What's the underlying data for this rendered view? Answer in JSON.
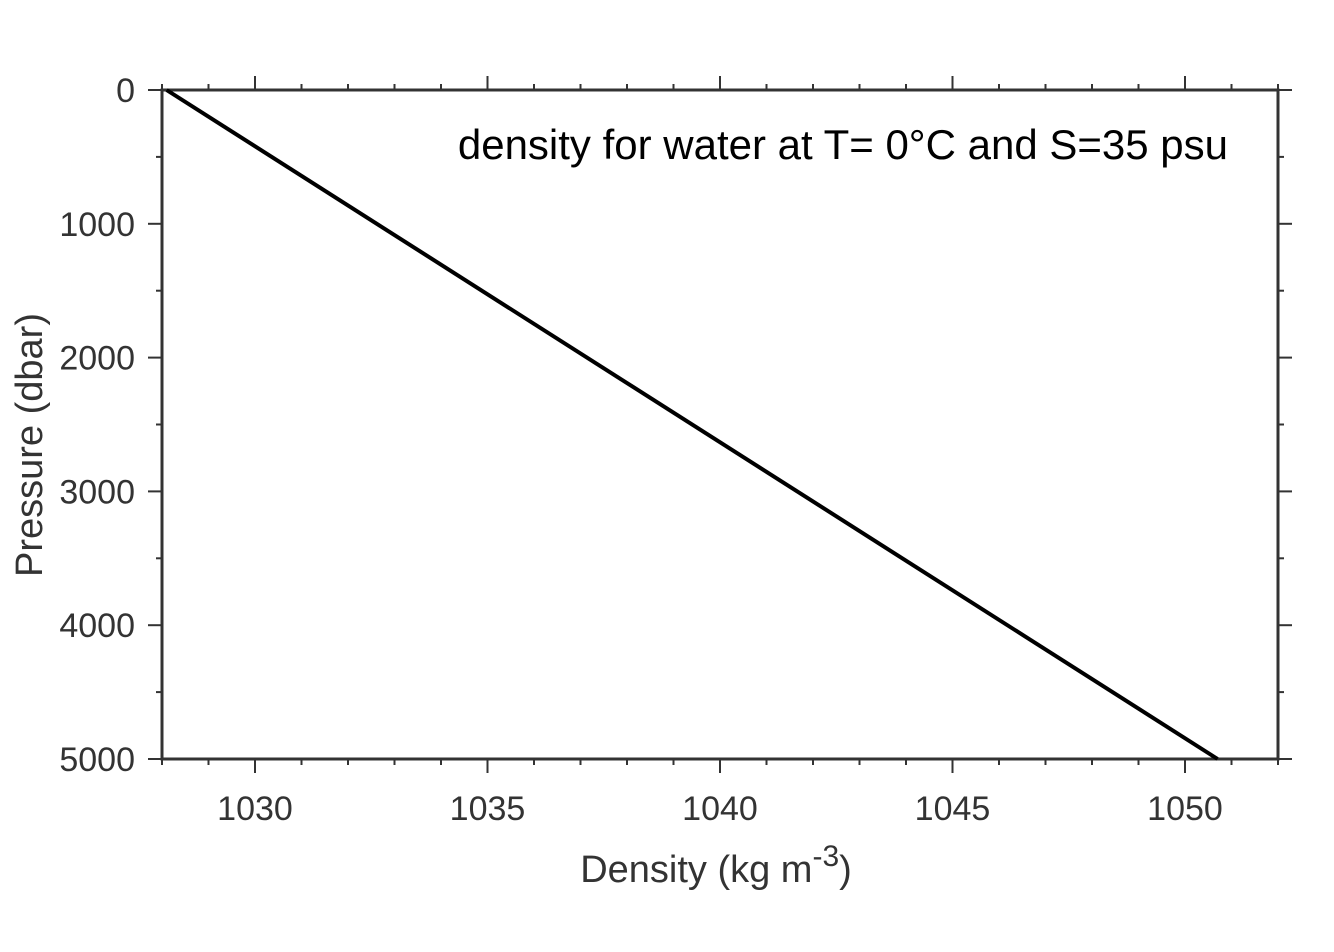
{
  "chart_data": {
    "type": "line",
    "title": "",
    "annotation": "density for water at T= 0°C and S=35 psu",
    "xlabel": {
      "base": "Density (kg m",
      "superscript": "-3",
      "suffix": ")"
    },
    "ylabel": "Pressure (dbar)",
    "xlim": [
      1028,
      1052
    ],
    "ylim": [
      0,
      5000
    ],
    "y_inverted": true,
    "x_major_ticks": [
      1030,
      1035,
      1040,
      1045,
      1050
    ],
    "x_tick_labels": [
      "1030",
      "1035",
      "1040",
      "1045",
      "1050"
    ],
    "x_minor_step": 1,
    "y_major_ticks": [
      0,
      1000,
      2000,
      3000,
      4000,
      5000
    ],
    "y_tick_labels": [
      "0",
      "1000",
      "2000",
      "3000",
      "4000",
      "5000"
    ],
    "y_minor_step": 500,
    "grid": false,
    "series": [
      {
        "name": "density",
        "x": [
          1028.1,
          1050.7
        ],
        "y": [
          0,
          5000
        ]
      }
    ],
    "colors": {
      "line": "#000000",
      "frame": "#333333",
      "text": "#333333"
    }
  }
}
